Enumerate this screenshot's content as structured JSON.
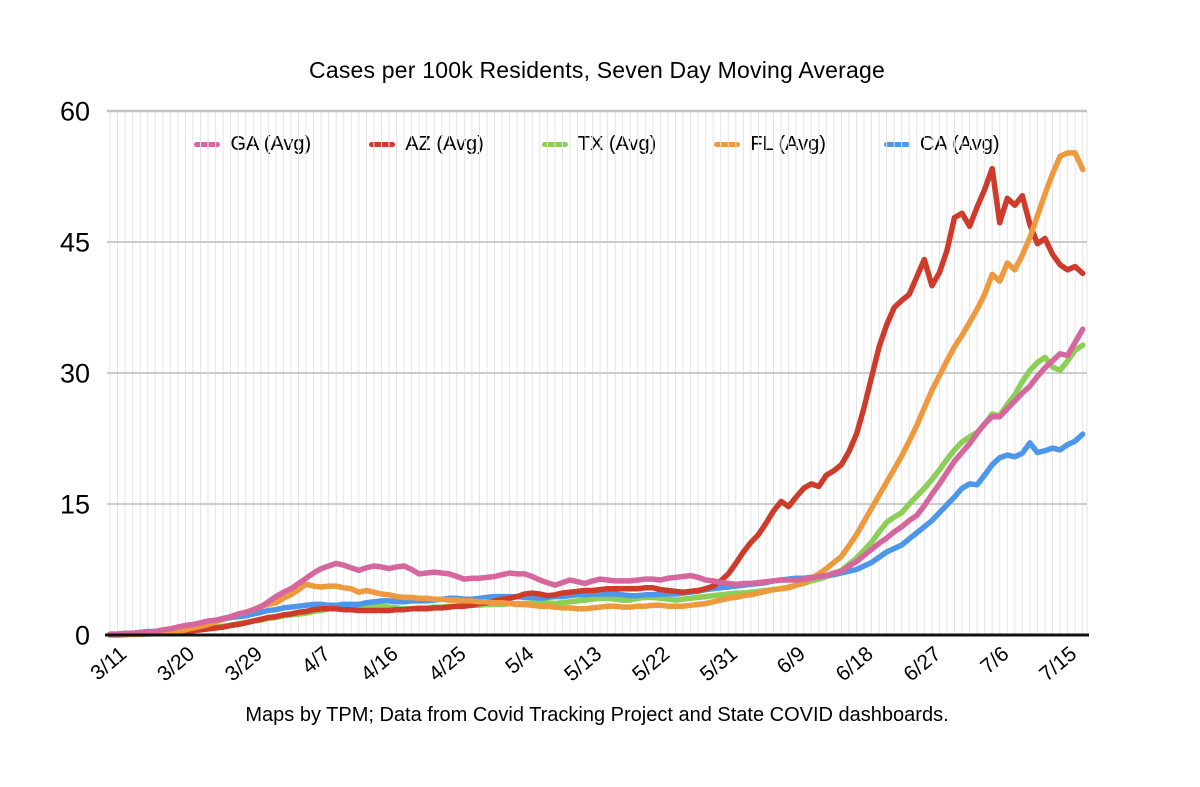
{
  "colors": {
    "background": "#ffffff",
    "grid_minor": "#e4e4e4",
    "grid_major": "#cccccc",
    "plot_border": "#c4c4c4",
    "axis": "#111111",
    "text": "#000000"
  },
  "chart_data": {
    "type": "line",
    "title": "Cases per 100k Residents, Seven Day Moving Average",
    "footnote": "Maps by TPM; Data from Covid Tracking Project and State COVID dashboards.",
    "xlabel": "",
    "ylabel": "",
    "ylim": [
      0,
      60
    ],
    "y_ticks": [
      0,
      15,
      30,
      45,
      60
    ],
    "x_tick_labels": [
      "3/11",
      "3/20",
      "3/29",
      "4/7",
      "4/16",
      "4/25",
      "5/4",
      "5/13",
      "5/22",
      "5/31",
      "6/9",
      "6/18",
      "6/27",
      "7/6",
      "7/15"
    ],
    "x_tick_interval_days": 9,
    "x_start": "3/11",
    "x_end": "7/18",
    "x_unit": "day",
    "grid": {
      "minor_vertical": "daily",
      "major_horizontal": "every 15 units",
      "legend_position": "top inside plot"
    },
    "series": [
      {
        "id": "ga",
        "name": "GA (Avg)",
        "color": "#d5679e",
        "z": 5,
        "values": [
          0.1,
          0.1,
          0.2,
          0.2,
          0.3,
          0.3,
          0.4,
          0.6,
          0.7,
          0.9,
          1.1,
          1.2,
          1.4,
          1.6,
          1.7,
          1.9,
          2.1,
          2.4,
          2.6,
          2.9,
          3.2,
          3.8,
          4.4,
          4.9,
          5.3,
          5.9,
          6.5,
          7.1,
          7.6,
          7.9,
          8.2,
          8.0,
          7.7,
          7.4,
          7.7,
          7.9,
          7.8,
          7.6,
          7.8,
          7.9,
          7.5,
          7.0,
          7.1,
          7.2,
          7.1,
          7.0,
          6.7,
          6.4,
          6.5,
          6.5,
          6.6,
          6.7,
          6.9,
          7.1,
          7.0,
          7.0,
          6.7,
          6.3,
          6.0,
          5.7,
          6.0,
          6.3,
          6.1,
          5.9,
          6.2,
          6.4,
          6.3,
          6.2,
          6.2,
          6.2,
          6.3,
          6.4,
          6.4,
          6.3,
          6.5,
          6.6,
          6.7,
          6.8,
          6.6,
          6.3,
          6.2,
          6.0,
          5.9,
          5.8,
          5.9,
          5.9,
          6.0,
          6.1,
          6.2,
          6.3,
          6.3,
          6.3,
          6.4,
          6.5,
          6.7,
          6.8,
          7.1,
          7.3,
          7.9,
          8.4,
          9.1,
          9.8,
          10.5,
          11.1,
          11.8,
          12.4,
          13.1,
          13.7,
          14.8,
          16.1,
          17.3,
          18.6,
          19.9,
          20.9,
          21.9,
          23.1,
          24.2,
          25.0,
          25.0,
          25.9,
          26.8,
          27.7,
          28.5,
          29.6,
          30.6,
          31.4,
          32.2,
          32.0,
          33.5,
          35.0
        ]
      },
      {
        "id": "az",
        "name": "AZ (Avg)",
        "color": "#ce3b2b",
        "z": 3,
        "values": [
          0.0,
          0.0,
          0.1,
          0.1,
          0.1,
          0.2,
          0.2,
          0.3,
          0.3,
          0.4,
          0.5,
          0.5,
          0.6,
          0.7,
          0.8,
          0.9,
          1.1,
          1.2,
          1.4,
          1.6,
          1.8,
          2.0,
          2.1,
          2.3,
          2.4,
          2.6,
          2.7,
          2.9,
          3.0,
          3.0,
          3.0,
          2.9,
          2.9,
          2.8,
          2.8,
          2.8,
          2.8,
          2.8,
          2.9,
          2.9,
          3.0,
          3.0,
          3.0,
          3.1,
          3.1,
          3.2,
          3.3,
          3.3,
          3.4,
          3.6,
          3.7,
          3.9,
          4.1,
          4.2,
          4.4,
          4.7,
          4.8,
          4.7,
          4.5,
          4.6,
          4.8,
          4.9,
          5.0,
          5.1,
          5.1,
          5.2,
          5.3,
          5.3,
          5.3,
          5.3,
          5.3,
          5.4,
          5.4,
          5.2,
          5.1,
          5.0,
          4.9,
          5.0,
          5.1,
          5.3,
          5.6,
          6.2,
          7.0,
          8.2,
          9.5,
          10.6,
          11.5,
          12.8,
          14.2,
          15.3,
          14.7,
          15.8,
          16.8,
          17.3,
          17.0,
          18.3,
          18.8,
          19.5,
          21.0,
          23.0,
          26.0,
          29.5,
          33.0,
          35.5,
          37.5,
          38.3,
          39.0,
          41.0,
          43.0,
          40.0,
          41.5,
          44.0,
          47.8,
          48.3,
          46.8,
          49.0,
          51.0,
          53.4,
          47.2,
          50.0,
          49.2,
          50.3,
          47.0,
          44.8,
          45.4,
          43.6,
          42.4,
          41.8,
          42.2,
          41.4
        ]
      },
      {
        "id": "tx",
        "name": "TX (Avg)",
        "color": "#8ccf56",
        "z": 1,
        "values": [
          0.0,
          0.0,
          0.0,
          0.1,
          0.1,
          0.1,
          0.2,
          0.2,
          0.3,
          0.3,
          0.4,
          0.5,
          0.6,
          0.7,
          0.9,
          1.0,
          1.1,
          1.3,
          1.4,
          1.6,
          1.7,
          1.9,
          2.0,
          2.2,
          2.3,
          2.4,
          2.5,
          2.7,
          2.8,
          3.0,
          3.1,
          3.2,
          3.3,
          3.4,
          3.3,
          3.3,
          3.3,
          3.2,
          3.1,
          3.0,
          3.0,
          3.1,
          3.1,
          3.2,
          3.2,
          3.3,
          3.3,
          3.4,
          3.4,
          3.4,
          3.5,
          3.5,
          3.5,
          3.6,
          3.6,
          3.6,
          3.7,
          3.7,
          3.7,
          3.6,
          3.7,
          3.8,
          3.9,
          4.0,
          4.1,
          4.2,
          4.2,
          4.1,
          4.0,
          4.0,
          4.2,
          4.3,
          4.3,
          4.2,
          4.1,
          4.0,
          4.1,
          4.2,
          4.3,
          4.4,
          4.5,
          4.6,
          4.7,
          4.8,
          4.8,
          4.9,
          5.0,
          5.1,
          5.2,
          5.3,
          5.5,
          5.7,
          5.9,
          6.2,
          6.4,
          6.7,
          7.0,
          7.4,
          8.1,
          8.8,
          9.7,
          10.6,
          11.8,
          12.9,
          13.5,
          14.0,
          15.0,
          15.9,
          16.8,
          17.8,
          18.9,
          20.1,
          21.2,
          22.1,
          22.7,
          23.2,
          24.1,
          25.3,
          25.1,
          26.4,
          27.5,
          29.0,
          30.3,
          31.2,
          31.8,
          30.7,
          30.3,
          31.4,
          32.6,
          33.2
        ]
      },
      {
        "id": "fl",
        "name": "FL (Avg)",
        "color": "#ef993f",
        "z": 4,
        "values": [
          0.0,
          0.0,
          0.1,
          0.1,
          0.1,
          0.2,
          0.2,
          0.3,
          0.3,
          0.4,
          0.6,
          0.8,
          1.0,
          1.2,
          1.5,
          1.8,
          2.1,
          2.4,
          2.6,
          2.9,
          3.3,
          3.5,
          3.7,
          4.2,
          4.6,
          5.2,
          5.8,
          5.6,
          5.5,
          5.6,
          5.6,
          5.4,
          5.3,
          4.9,
          5.1,
          4.9,
          4.7,
          4.6,
          4.4,
          4.3,
          4.3,
          4.2,
          4.2,
          4.1,
          4.1,
          4.0,
          4.0,
          3.9,
          3.9,
          3.8,
          3.8,
          3.7,
          3.7,
          3.6,
          3.5,
          3.5,
          3.4,
          3.3,
          3.3,
          3.2,
          3.1,
          3.1,
          3.0,
          3.0,
          3.1,
          3.2,
          3.3,
          3.3,
          3.2,
          3.2,
          3.3,
          3.3,
          3.4,
          3.4,
          3.3,
          3.3,
          3.3,
          3.4,
          3.5,
          3.6,
          3.8,
          4.0,
          4.2,
          4.3,
          4.5,
          4.6,
          4.8,
          5.0,
          5.2,
          5.3,
          5.4,
          5.7,
          6.0,
          6.5,
          7.0,
          7.6,
          8.3,
          9.0,
          10.2,
          11.5,
          13.0,
          14.5,
          16.0,
          17.5,
          19.0,
          20.5,
          22.2,
          24.0,
          26.0,
          28.0,
          29.7,
          31.4,
          33.0,
          34.3,
          35.8,
          37.3,
          39.0,
          41.3,
          40.5,
          42.6,
          41.8,
          43.5,
          45.5,
          48.0,
          50.5,
          52.8,
          54.8,
          55.2,
          55.2,
          53.3
        ]
      },
      {
        "id": "ca",
        "name": "CA (Avg)",
        "color": "#4d97ea",
        "z": 2,
        "values": [
          0.1,
          0.1,
          0.2,
          0.2,
          0.3,
          0.4,
          0.4,
          0.5,
          0.7,
          0.8,
          1.0,
          1.1,
          1.3,
          1.5,
          1.7,
          1.8,
          2.0,
          2.1,
          2.2,
          2.4,
          2.6,
          2.8,
          2.9,
          3.1,
          3.2,
          3.3,
          3.4,
          3.5,
          3.5,
          3.4,
          3.4,
          3.5,
          3.5,
          3.5,
          3.7,
          3.8,
          3.9,
          3.9,
          3.8,
          3.8,
          3.9,
          3.9,
          3.9,
          4.0,
          4.1,
          4.2,
          4.2,
          4.1,
          4.1,
          4.2,
          4.3,
          4.4,
          4.4,
          4.4,
          4.4,
          4.3,
          4.3,
          4.2,
          4.3,
          4.4,
          4.4,
          4.5,
          4.6,
          4.6,
          4.7,
          4.7,
          4.7,
          4.7,
          4.6,
          4.5,
          4.5,
          4.6,
          4.6,
          4.7,
          4.7,
          4.7,
          4.8,
          4.9,
          5.0,
          5.2,
          5.3,
          5.4,
          5.5,
          5.6,
          5.7,
          5.8,
          5.9,
          6.0,
          6.2,
          6.3,
          6.4,
          6.5,
          6.5,
          6.6,
          6.7,
          6.8,
          6.9,
          7.1,
          7.3,
          7.5,
          7.9,
          8.3,
          8.9,
          9.5,
          9.9,
          10.3,
          11.0,
          11.7,
          12.4,
          13.1,
          14.0,
          14.9,
          15.8,
          16.8,
          17.3,
          17.2,
          18.3,
          19.5,
          20.3,
          20.6,
          20.4,
          20.8,
          22.0,
          20.9,
          21.1,
          21.4,
          21.2,
          21.8,
          22.2,
          23.0
        ]
      }
    ]
  }
}
